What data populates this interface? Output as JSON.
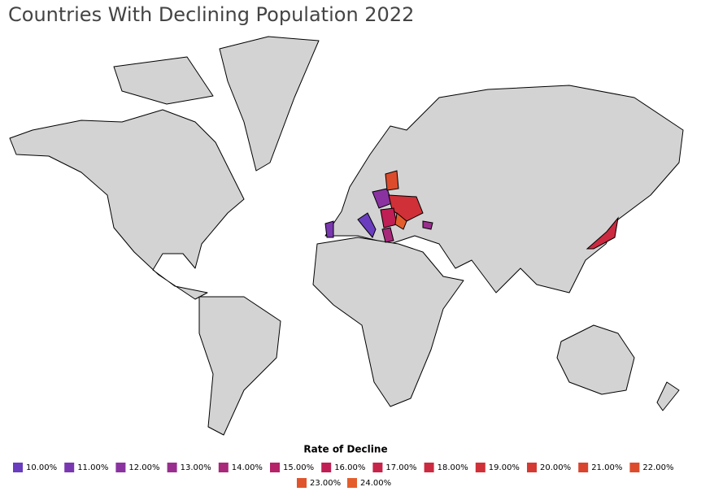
{
  "header": {
    "title": "Countries With Declining Population 2022"
  },
  "legend": {
    "title": "Rate of Decline",
    "items": [
      {
        "value": 10,
        "label": "10.00%",
        "color": "#6a3dbf"
      },
      {
        "value": 11,
        "label": "11.00%",
        "color": "#7a38b0"
      },
      {
        "value": 12,
        "label": "12.00%",
        "color": "#8a33a0"
      },
      {
        "value": 13,
        "label": "13.00%",
        "color": "#9a2e8e"
      },
      {
        "value": 14,
        "label": "14.00%",
        "color": "#a8287a"
      },
      {
        "value": 15,
        "label": "15.00%",
        "color": "#b52368"
      },
      {
        "value": 16,
        "label": "16.00%",
        "color": "#bf1f55"
      },
      {
        "value": 17,
        "label": "17.00%",
        "color": "#c72449"
      },
      {
        "value": 18,
        "label": "18.00%",
        "color": "#cc2a40"
      },
      {
        "value": 19,
        "label": "19.00%",
        "color": "#d03038"
      },
      {
        "value": 20,
        "label": "20.00%",
        "color": "#d43a32"
      },
      {
        "value": 21,
        "label": "21.00%",
        "color": "#d8442e"
      },
      {
        "value": 22,
        "label": "22.00%",
        "color": "#dc4c2c"
      },
      {
        "value": 23,
        "label": "23.00%",
        "color": "#e0542c"
      },
      {
        "value": 24,
        "label": "24.00%",
        "color": "#e45e2c"
      }
    ]
  }
}
